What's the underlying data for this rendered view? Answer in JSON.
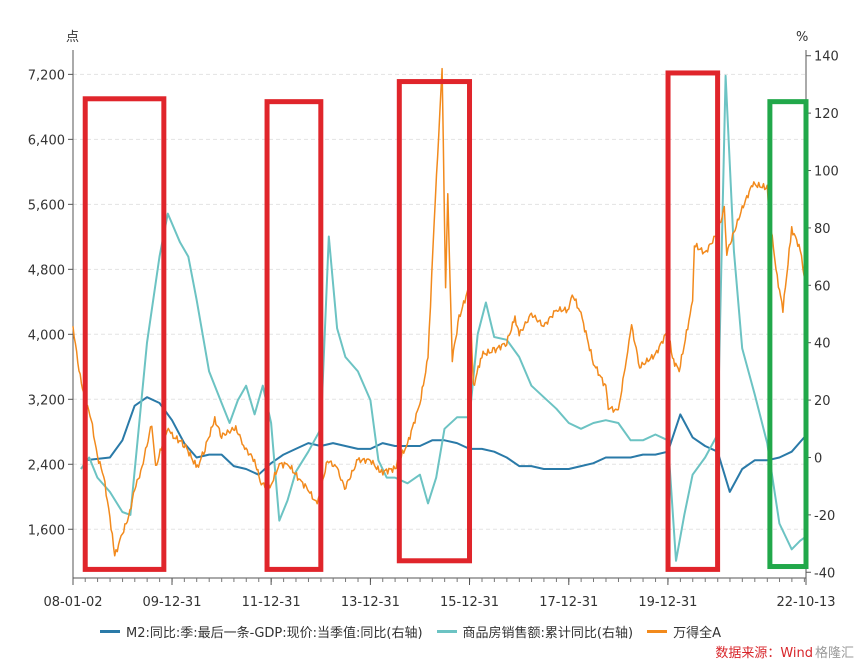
{
  "chart_data": {
    "type": "line",
    "left_unit": "点",
    "right_unit": "%",
    "y_left_ticks": [
      "1,600",
      "2,400",
      "3,200",
      "4,000",
      "4,800",
      "5,600",
      "6,400",
      "7,200"
    ],
    "y_right_ticks": [
      "-40",
      "-20",
      "0",
      "20",
      "40",
      "60",
      "80",
      "100",
      "120",
      "140"
    ],
    "y_left_range": [
      1000,
      7500
    ],
    "y_right_range": [
      -42,
      142
    ],
    "x_ticks": [
      "08-01-02",
      "09-12-31",
      "11-12-31",
      "13-12-31",
      "15-12-31",
      "17-12-31",
      "19-12-31",
      "22-10-13"
    ],
    "x_range": [
      "2008-01-02",
      "2022-10-13"
    ],
    "grid": true,
    "legend_position": "bottom",
    "series": [
      {
        "name": "M2:同比:季:最后一条-GDP:现价:当季值:同比(右轴)",
        "axis": "right",
        "color": "#2a7aa8",
        "points": [
          [
            "2008-03-31",
            -1
          ],
          [
            "2008-06-30",
            -0.5
          ],
          [
            "2008-09-30",
            0
          ],
          [
            "2008-12-31",
            6
          ],
          [
            "2009-03-31",
            18
          ],
          [
            "2009-06-30",
            21
          ],
          [
            "2009-09-30",
            19
          ],
          [
            "2009-12-31",
            13
          ],
          [
            "2010-03-31",
            5
          ],
          [
            "2010-06-30",
            0
          ],
          [
            "2010-09-30",
            1
          ],
          [
            "2010-12-31",
            1
          ],
          [
            "2011-03-31",
            -3
          ],
          [
            "2011-06-30",
            -4
          ],
          [
            "2011-09-30",
            -6
          ],
          [
            "2011-12-31",
            -2
          ],
          [
            "2012-03-31",
            1
          ],
          [
            "2012-06-30",
            3
          ],
          [
            "2012-09-30",
            5
          ],
          [
            "2012-12-31",
            4
          ],
          [
            "2013-03-31",
            5
          ],
          [
            "2013-06-30",
            4
          ],
          [
            "2013-09-30",
            3
          ],
          [
            "2013-12-31",
            3
          ],
          [
            "2014-03-31",
            5
          ],
          [
            "2014-06-30",
            4
          ],
          [
            "2014-09-30",
            4
          ],
          [
            "2014-12-31",
            4
          ],
          [
            "2015-03-31",
            6
          ],
          [
            "2015-06-30",
            6
          ],
          [
            "2015-09-30",
            5
          ],
          [
            "2015-12-31",
            3
          ],
          [
            "2016-03-31",
            3
          ],
          [
            "2016-06-30",
            2
          ],
          [
            "2016-09-30",
            0
          ],
          [
            "2016-12-31",
            -3
          ],
          [
            "2017-03-31",
            -3
          ],
          [
            "2017-06-30",
            -4
          ],
          [
            "2017-09-30",
            -4
          ],
          [
            "2017-12-31",
            -4
          ],
          [
            "2018-03-31",
            -3
          ],
          [
            "2018-06-30",
            -2
          ],
          [
            "2018-09-30",
            0
          ],
          [
            "2018-12-31",
            0
          ],
          [
            "2019-03-31",
            0
          ],
          [
            "2019-06-30",
            1
          ],
          [
            "2019-09-30",
            1
          ],
          [
            "2019-12-31",
            2
          ],
          [
            "2020-03-31",
            15
          ],
          [
            "2020-06-30",
            7
          ],
          [
            "2020-09-30",
            4
          ],
          [
            "2020-12-31",
            2
          ],
          [
            "2021-03-31",
            -12
          ],
          [
            "2021-06-30",
            -4
          ],
          [
            "2021-09-30",
            -1
          ],
          [
            "2021-12-31",
            -1
          ],
          [
            "2022-03-31",
            0
          ],
          [
            "2022-06-30",
            2
          ],
          [
            "2022-09-30",
            7
          ]
        ]
      },
      {
        "name": "商品房销售额:累计同比(右轴)",
        "axis": "right",
        "color": "#6cc3c3",
        "points": [
          [
            "2008-02-29",
            -4
          ],
          [
            "2008-04-30",
            0
          ],
          [
            "2008-06-30",
            -7
          ],
          [
            "2008-09-30",
            -12
          ],
          [
            "2008-12-31",
            -19
          ],
          [
            "2009-02-28",
            -20
          ],
          [
            "2009-04-30",
            10
          ],
          [
            "2009-06-30",
            40
          ],
          [
            "2009-09-30",
            70
          ],
          [
            "2009-11-30",
            85
          ],
          [
            "2010-02-28",
            75
          ],
          [
            "2010-04-30",
            70
          ],
          [
            "2010-06-30",
            55
          ],
          [
            "2010-09-30",
            30
          ],
          [
            "2010-12-31",
            19
          ],
          [
            "2011-02-28",
            12
          ],
          [
            "2011-04-30",
            20
          ],
          [
            "2011-06-30",
            25
          ],
          [
            "2011-08-31",
            15
          ],
          [
            "2011-10-31",
            25
          ],
          [
            "2011-12-31",
            12
          ],
          [
            "2012-02-29",
            -22
          ],
          [
            "2012-04-30",
            -15
          ],
          [
            "2012-06-30",
            -5
          ],
          [
            "2012-09-30",
            2
          ],
          [
            "2012-12-31",
            10
          ],
          [
            "2013-02-28",
            77
          ],
          [
            "2013-04-30",
            45
          ],
          [
            "2013-06-30",
            35
          ],
          [
            "2013-09-30",
            30
          ],
          [
            "2013-12-31",
            20
          ],
          [
            "2014-02-28",
            -1
          ],
          [
            "2014-04-30",
            -7
          ],
          [
            "2014-06-30",
            -7
          ],
          [
            "2014-09-30",
            -9
          ],
          [
            "2014-12-31",
            -6
          ],
          [
            "2015-02-28",
            -16
          ],
          [
            "2015-04-30",
            -7
          ],
          [
            "2015-06-30",
            10
          ],
          [
            "2015-09-30",
            14
          ],
          [
            "2015-12-31",
            14
          ],
          [
            "2016-02-29",
            43
          ],
          [
            "2016-04-30",
            54
          ],
          [
            "2016-06-30",
            42
          ],
          [
            "2016-09-30",
            41
          ],
          [
            "2016-12-31",
            35
          ],
          [
            "2017-03-31",
            25
          ],
          [
            "2017-06-30",
            21
          ],
          [
            "2017-09-30",
            17
          ],
          [
            "2017-12-31",
            12
          ],
          [
            "2018-03-31",
            10
          ],
          [
            "2018-06-30",
            12
          ],
          [
            "2018-09-30",
            13
          ],
          [
            "2018-12-31",
            12
          ],
          [
            "2019-03-31",
            6
          ],
          [
            "2019-06-30",
            6
          ],
          [
            "2019-09-30",
            8
          ],
          [
            "2019-12-31",
            6
          ],
          [
            "2020-02-29",
            -36
          ],
          [
            "2020-04-30",
            -20
          ],
          [
            "2020-06-30",
            -6
          ],
          [
            "2020-09-30",
            0
          ],
          [
            "2020-12-31",
            8
          ],
          [
            "2021-02-28",
            133
          ],
          [
            "2021-04-30",
            72
          ],
          [
            "2021-06-30",
            38
          ],
          [
            "2021-09-30",
            22
          ],
          [
            "2021-12-31",
            5
          ],
          [
            "2022-03-31",
            -23
          ],
          [
            "2022-06-30",
            -32
          ],
          [
            "2022-08-31",
            -29
          ],
          [
            "2022-09-30",
            -28
          ]
        ]
      },
      {
        "name": "万得全A",
        "axis": "left",
        "color": "#f28a1d",
        "points": [
          [
            "2008-01-02",
            4100
          ],
          [
            "2008-02-15",
            3550
          ],
          [
            "2008-03-31",
            3200
          ],
          [
            "2008-05-15",
            2950
          ],
          [
            "2008-06-30",
            2500
          ],
          [
            "2008-08-15",
            2250
          ],
          [
            "2008-09-30",
            1750
          ],
          [
            "2008-11-04",
            1270
          ],
          [
            "2008-12-31",
            1550
          ],
          [
            "2009-02-15",
            1750
          ],
          [
            "2009-03-31",
            2100
          ],
          [
            "2009-05-15",
            2300
          ],
          [
            "2009-08-04",
            2900
          ],
          [
            "2009-09-01",
            2350
          ],
          [
            "2009-11-25",
            2850
          ],
          [
            "2009-12-31",
            2750
          ],
          [
            "2010-03-31",
            2650
          ],
          [
            "2010-07-05",
            2350
          ],
          [
            "2010-08-31",
            2600
          ],
          [
            "2010-11-11",
            2950
          ],
          [
            "2010-12-31",
            2750
          ],
          [
            "2011-04-15",
            2850
          ],
          [
            "2011-06-20",
            2600
          ],
          [
            "2011-08-31",
            2450
          ],
          [
            "2011-10-20",
            2150
          ],
          [
            "2011-12-31",
            2150
          ],
          [
            "2012-03-01",
            2400
          ],
          [
            "2012-05-04",
            2400
          ],
          [
            "2012-07-31",
            2200
          ],
          [
            "2012-09-25",
            2100
          ],
          [
            "2012-12-04",
            1900
          ],
          [
            "2013-02-18",
            2450
          ],
          [
            "2013-04-30",
            2350
          ],
          [
            "2013-06-25",
            2100
          ],
          [
            "2013-09-30",
            2450
          ],
          [
            "2013-12-31",
            2450
          ],
          [
            "2014-03-15",
            2300
          ],
          [
            "2014-06-30",
            2350
          ],
          [
            "2014-09-30",
            2650
          ],
          [
            "2014-12-31",
            3150
          ],
          [
            "2015-02-28",
            3700
          ],
          [
            "2015-04-15",
            5400
          ],
          [
            "2015-06-12",
            7250
          ],
          [
            "2015-07-08",
            4600
          ],
          [
            "2015-07-24",
            5700
          ],
          [
            "2015-08-26",
            3700
          ],
          [
            "2015-10-15",
            4200
          ],
          [
            "2015-12-31",
            4600
          ],
          [
            "2016-01-28",
            3350
          ],
          [
            "2016-03-31",
            3750
          ],
          [
            "2016-06-30",
            3800
          ],
          [
            "2016-09-30",
            3900
          ],
          [
            "2016-11-30",
            4200
          ],
          [
            "2016-12-31",
            4000
          ],
          [
            "2017-03-31",
            4250
          ],
          [
            "2017-06-30",
            4100
          ],
          [
            "2017-09-30",
            4300
          ],
          [
            "2017-12-31",
            4300
          ],
          [
            "2018-01-25",
            4500
          ],
          [
            "2018-03-31",
            4250
          ],
          [
            "2018-06-30",
            3650
          ],
          [
            "2018-09-30",
            3350
          ],
          [
            "2018-10-18",
            3100
          ],
          [
            "2018-12-31",
            3050
          ],
          [
            "2019-02-28",
            3700
          ],
          [
            "2019-04-08",
            4100
          ],
          [
            "2019-06-06",
            3600
          ],
          [
            "2019-09-30",
            3750
          ],
          [
            "2019-12-31",
            4050
          ],
          [
            "2020-02-03",
            3700
          ],
          [
            "2020-03-23",
            3550
          ],
          [
            "2020-06-30",
            4400
          ],
          [
            "2020-07-13",
            5100
          ],
          [
            "2020-09-30",
            5000
          ],
          [
            "2020-12-31",
            5250
          ],
          [
            "2021-02-18",
            5550
          ],
          [
            "2021-03-09",
            5000
          ],
          [
            "2021-06-30",
            5550
          ],
          [
            "2021-09-15",
            5850
          ],
          [
            "2021-12-31",
            5800
          ],
          [
            "2022-01-28",
            5300
          ],
          [
            "2022-03-15",
            4700
          ],
          [
            "2022-04-26",
            4300
          ],
          [
            "2022-06-30",
            5300
          ],
          [
            "2022-08-31",
            5050
          ],
          [
            "2022-09-30",
            4700
          ],
          [
            "2022-10-13",
            4750
          ]
        ]
      }
    ],
    "highlight_boxes": [
      {
        "color": "#e0252b",
        "from": "2008-04-01",
        "to": "2009-11-01",
        "y_from": -39,
        "y_to": 125
      },
      {
        "color": "#e0252b",
        "from": "2011-12-01",
        "to": "2012-12-31",
        "y_from": -39,
        "y_to": 124
      },
      {
        "color": "#e0252b",
        "from": "2014-08-01",
        "to": "2015-12-31",
        "y_from": -36,
        "y_to": 131
      },
      {
        "color": "#e0252b",
        "from": "2020-01-01",
        "to": "2020-12-31",
        "y_from": -39,
        "y_to": 134
      },
      {
        "color": "#21a84a",
        "from": "2022-01-20",
        "to": "2022-10-13",
        "y_from": -38,
        "y_to": 124
      }
    ]
  },
  "legend": [
    {
      "label": "M2:同比:季:最后一条-GDP:现价:当季值:同比(右轴)",
      "color": "#2a7aa8"
    },
    {
      "label": "商品房销售额:累计同比(右轴)",
      "color": "#6cc3c3"
    },
    {
      "label": "万得全A",
      "color": "#f28a1d"
    }
  ],
  "source": {
    "text": "数据来源：Wind",
    "watermark": "格隆汇"
  }
}
